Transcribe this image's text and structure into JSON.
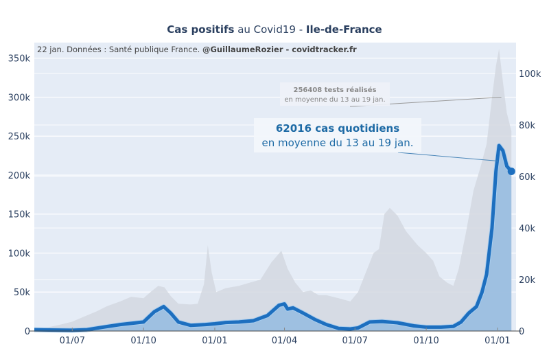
{
  "chart_data": {
    "type": "area",
    "title_parts": [
      {
        "text": "Cas positifs",
        "bold": true
      },
      {
        "text": " au Covid19 - ",
        "bold": false
      },
      {
        "text": "Ile-de-France",
        "bold": true
      }
    ],
    "subtitle_parts": [
      {
        "text": "22 jan. Données : Santé publique France. ",
        "bold": false
      },
      {
        "text": "@GuillaumeRozier - covidtracker.fr",
        "bold": true
      }
    ],
    "x_start": "2020-05-13",
    "x_end": "2022-01-25",
    "x_ticks": [
      {
        "date": "2020-07-01",
        "label": "01/07"
      },
      {
        "date": "2020-10-01",
        "label": "01/10"
      },
      {
        "date": "2021-01-01",
        "label": "01/01"
      },
      {
        "date": "2021-04-01",
        "label": "01/04"
      },
      {
        "date": "2021-07-01",
        "label": "01/07"
      },
      {
        "date": "2021-10-01",
        "label": "01/10"
      },
      {
        "date": "2022-01-01",
        "label": "01/01"
      }
    ],
    "y_left": {
      "range": [
        0,
        370000
      ],
      "ticks": [
        0,
        50000,
        100000,
        150000,
        200000,
        250000,
        300000,
        350000
      ],
      "labels": [
        "0",
        "50k",
        "100k",
        "150k",
        "200k",
        "250k",
        "300k",
        "350k"
      ],
      "series": "tests"
    },
    "y_right": {
      "range": [
        0,
        112000
      ],
      "ticks": [
        0,
        20000,
        40000,
        60000,
        80000,
        100000
      ],
      "labels": [
        "0",
        "20k",
        "40k",
        "60k",
        "80k",
        "100k"
      ],
      "series": "cases"
    },
    "grid": true,
    "legend": "none",
    "series": [
      {
        "name": "tests",
        "axis": "left",
        "color": "#d3d8e0",
        "points": [
          [
            "2020-05-13",
            3000
          ],
          [
            "2020-06-01",
            5000
          ],
          [
            "2020-06-15",
            8000
          ],
          [
            "2020-07-01",
            12000
          ],
          [
            "2020-07-15",
            18000
          ],
          [
            "2020-08-01",
            25000
          ],
          [
            "2020-08-15",
            32000
          ],
          [
            "2020-09-01",
            38000
          ],
          [
            "2020-09-15",
            44000
          ],
          [
            "2020-10-01",
            42000
          ],
          [
            "2020-10-10",
            50000
          ],
          [
            "2020-10-20",
            58000
          ],
          [
            "2020-10-28",
            56000
          ],
          [
            "2020-11-05",
            45000
          ],
          [
            "2020-11-15",
            35000
          ],
          [
            "2020-12-01",
            34000
          ],
          [
            "2020-12-10",
            35000
          ],
          [
            "2020-12-18",
            60000
          ],
          [
            "2020-12-23",
            110000
          ],
          [
            "2020-12-28",
            75000
          ],
          [
            "2021-01-03",
            50000
          ],
          [
            "2021-01-15",
            55000
          ],
          [
            "2021-02-01",
            58000
          ],
          [
            "2021-02-15",
            62000
          ],
          [
            "2021-03-01",
            66000
          ],
          [
            "2021-03-15",
            88000
          ],
          [
            "2021-03-28",
            103000
          ],
          [
            "2021-04-05",
            80000
          ],
          [
            "2021-04-15",
            62000
          ],
          [
            "2021-04-25",
            50000
          ],
          [
            "2021-05-05",
            52000
          ],
          [
            "2021-05-15",
            46000
          ],
          [
            "2021-05-25",
            46000
          ],
          [
            "2021-06-10",
            42000
          ],
          [
            "2021-06-25",
            38000
          ],
          [
            "2021-07-05",
            50000
          ],
          [
            "2021-07-15",
            75000
          ],
          [
            "2021-07-25",
            100000
          ],
          [
            "2021-08-01",
            105000
          ],
          [
            "2021-08-08",
            150000
          ],
          [
            "2021-08-15",
            158000
          ],
          [
            "2021-08-25",
            148000
          ],
          [
            "2021-09-05",
            128000
          ],
          [
            "2021-09-20",
            110000
          ],
          [
            "2021-10-01",
            100000
          ],
          [
            "2021-10-10",
            90000
          ],
          [
            "2021-10-18",
            70000
          ],
          [
            "2021-10-28",
            62000
          ],
          [
            "2021-11-05",
            58000
          ],
          [
            "2021-11-12",
            80000
          ],
          [
            "2021-11-22",
            130000
          ],
          [
            "2021-12-01",
            180000
          ],
          [
            "2021-12-10",
            210000
          ],
          [
            "2021-12-18",
            240000
          ],
          [
            "2021-12-25",
            300000
          ],
          [
            "2021-12-30",
            340000
          ],
          [
            "2022-01-03",
            362000
          ],
          [
            "2022-01-08",
            320000
          ],
          [
            "2022-01-13",
            280000
          ],
          [
            "2022-01-19",
            256408
          ]
        ]
      },
      {
        "name": "cases",
        "axis": "right",
        "color": "#1d6fbf",
        "fill": "#98bde0",
        "points": [
          [
            "2020-05-13",
            500
          ],
          [
            "2020-06-01",
            400
          ],
          [
            "2020-07-01",
            300
          ],
          [
            "2020-07-20",
            500
          ],
          [
            "2020-08-10",
            1500
          ],
          [
            "2020-09-01",
            2500
          ],
          [
            "2020-10-01",
            3500
          ],
          [
            "2020-10-15",
            7500
          ],
          [
            "2020-10-27",
            9500
          ],
          [
            "2020-11-05",
            7000
          ],
          [
            "2020-11-15",
            3500
          ],
          [
            "2020-12-01",
            2200
          ],
          [
            "2020-12-20",
            2500
          ],
          [
            "2021-01-01",
            2800
          ],
          [
            "2021-01-15",
            3300
          ],
          [
            "2021-02-01",
            3500
          ],
          [
            "2021-02-20",
            4000
          ],
          [
            "2021-03-10",
            6000
          ],
          [
            "2021-03-25",
            10000
          ],
          [
            "2021-04-01",
            10500
          ],
          [
            "2021-04-05",
            8500
          ],
          [
            "2021-04-12",
            9000
          ],
          [
            "2021-04-25",
            7000
          ],
          [
            "2021-05-10",
            4500
          ],
          [
            "2021-05-25",
            2500
          ],
          [
            "2021-06-10",
            1000
          ],
          [
            "2021-06-25",
            800
          ],
          [
            "2021-07-05",
            1200
          ],
          [
            "2021-07-20",
            3500
          ],
          [
            "2021-08-05",
            3700
          ],
          [
            "2021-08-25",
            3200
          ],
          [
            "2021-09-15",
            2000
          ],
          [
            "2021-10-01",
            1500
          ],
          [
            "2021-10-20",
            1500
          ],
          [
            "2021-11-05",
            1800
          ],
          [
            "2021-11-15",
            3500
          ],
          [
            "2021-11-25",
            7000
          ],
          [
            "2021-12-05",
            9500
          ],
          [
            "2021-12-12",
            15000
          ],
          [
            "2021-12-18",
            22000
          ],
          [
            "2021-12-25",
            40000
          ],
          [
            "2021-12-30",
            62000
          ],
          [
            "2022-01-03",
            72000
          ],
          [
            "2022-01-08",
            70000
          ],
          [
            "2022-01-13",
            64000
          ],
          [
            "2022-01-19",
            62016
          ]
        ]
      }
    ],
    "annotations": [
      {
        "line1": "256408 tests réalisés",
        "line2": "en moyenne du 13 au 19 jan.",
        "points_to": {
          "series": "tests",
          "date": "2022-01-06",
          "value": 300000
        }
      },
      {
        "line1": "62016 cas quotidiens",
        "line2": "en moyenne du 13 au 19 jan.",
        "points_to": {
          "series": "cases",
          "date": "2022-01-02",
          "value": 66000
        }
      }
    ],
    "final_marker": {
      "series": "cases",
      "date": "2022-01-19",
      "value": 62016
    }
  }
}
